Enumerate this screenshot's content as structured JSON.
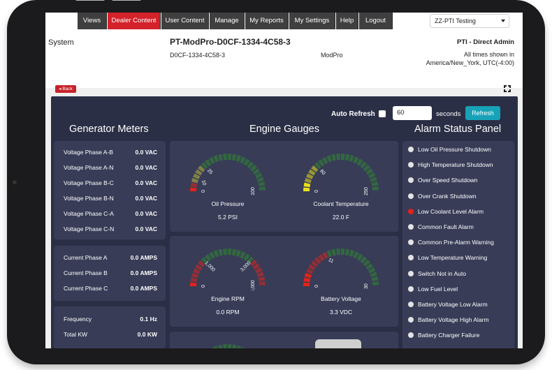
{
  "nav": {
    "tabs": [
      {
        "label": "Views",
        "active": false
      },
      {
        "label": "Dealer Content",
        "active": true
      },
      {
        "label": "User Content",
        "active": false
      },
      {
        "label": "Manage",
        "active": false
      },
      {
        "label": "My Reports",
        "active": false
      },
      {
        "label": "My Settings",
        "active": false
      },
      {
        "label": "Help",
        "active": false
      },
      {
        "label": "Logout",
        "active": false
      }
    ],
    "dealer_select": "ZZ-PTI Testing"
  },
  "header": {
    "section": "System",
    "device_title": "PT-ModPro-D0CF-1334-4C58-3",
    "device_id": "D0CF-1334-4C58-3",
    "device_model": "ModPro",
    "account": "PTI - Direct Admin",
    "timezone_line1": "All times shown in",
    "timezone_line2": "America/New_York, UTC(-4:00)"
  },
  "back_label": "Back",
  "controls": {
    "auto_refresh_label": "Auto Refresh",
    "auto_refresh_checked": false,
    "seconds_value": "60",
    "seconds_label": "seconds",
    "refresh_label": "Refresh"
  },
  "meters": {
    "title": "Generator Meters",
    "voltage": [
      {
        "label": "Voltage Phase A-B",
        "value": "0.0 VAC"
      },
      {
        "label": "Voltage Phase A-N",
        "value": "0.0 VAC"
      },
      {
        "label": "Voltage Phase B-C",
        "value": "0.0 VAC"
      },
      {
        "label": "Voltage Phase B-N",
        "value": "0.0 VAC"
      },
      {
        "label": "Voltage Phase C-A",
        "value": "0.0 VAC"
      },
      {
        "label": "Voltage Phase C-N",
        "value": "0.0 VAC"
      }
    ],
    "current": [
      {
        "label": "Current Phase A",
        "value": "0.0 AMPS"
      },
      {
        "label": "Current Phase B",
        "value": "0.0 AMPS"
      },
      {
        "label": "Current Phase C",
        "value": "0.0 AMPS"
      }
    ],
    "other": [
      {
        "label": "Frequency",
        "value": "0.1 Hz"
      },
      {
        "label": "Total KW",
        "value": "0.0 KW"
      }
    ]
  },
  "gauges": {
    "title": "Engine Gauges",
    "items": [
      {
        "name": "Oil Pressure",
        "value": "5.2 PSI",
        "min": "0",
        "max": "100",
        "ticks": [
          "10",
          "25"
        ],
        "reading": 0.052,
        "zones": [
          "#e2231a",
          "#b8b83a",
          "#2e8b2e"
        ],
        "zone_split": [
          0.1,
          0.25
        ]
      },
      {
        "name": "Coolant Temperature",
        "value": "22.0 F",
        "min": "0",
        "max": "250",
        "ticks": [
          "60"
        ],
        "reading": 0.088,
        "zones": [
          "#e8e01a",
          "#b8b83a",
          "#2e8b2e"
        ],
        "zone_split": [
          0.24,
          0.24
        ]
      },
      {
        "name": "Engine RPM",
        "value": "0.0 RPM",
        "min": "0",
        "max": "4,000",
        "ticks": [
          "1,000",
          "3,000"
        ],
        "reading": 0.0,
        "zones": [
          "#e2231a",
          "#2e8b2e",
          "#e2231a"
        ],
        "zone_split": [
          0.25,
          0.75
        ]
      },
      {
        "name": "Battery Voltage",
        "value": "3.3 VDC",
        "min": "0",
        "max": "30",
        "ticks": [
          "11"
        ],
        "reading": 0.11,
        "zones": [
          "#e2231a",
          "#2e8b2e",
          "#2e8b2e"
        ],
        "zone_split": [
          0.37,
          0.37
        ]
      },
      {
        "name": "",
        "value": "",
        "min": "",
        "max": "",
        "ticks": [
          "40",
          "50"
        ],
        "reading": 0.0,
        "zones": [
          "#2e8b2e",
          "#2e8b2e",
          "#2e8b2e"
        ],
        "zone_split": [
          0.4,
          0.5
        ]
      }
    ]
  },
  "alarms": {
    "title": "Alarm Status Panel",
    "items": [
      {
        "label": "Low Oil Pressure Shutdown",
        "active": false
      },
      {
        "label": "High Temperature Shutdown",
        "active": false
      },
      {
        "label": "Over Speed Shutdown",
        "active": false
      },
      {
        "label": "Over Crank Shutdown",
        "active": false
      },
      {
        "label": "Low Coolant Level Alarm",
        "active": true
      },
      {
        "label": "Common Fault Alarm",
        "active": false
      },
      {
        "label": "Common Pre-Alarm Warning",
        "active": false
      },
      {
        "label": "Low Temperature Warning",
        "active": false
      },
      {
        "label": "Switch Not in Auto",
        "active": false
      },
      {
        "label": "Low Fuel Level",
        "active": false
      },
      {
        "label": "Battery Voltage Low Alarm",
        "active": false
      },
      {
        "label": "Battery Voltage High Alarm",
        "active": false
      },
      {
        "label": "Battery Charger Failure",
        "active": false
      }
    ]
  },
  "colors": {
    "accent": "#d3222a",
    "dashboard_bg": "#2b2f46",
    "panel_bg": "#383c57",
    "refresh": "#17a2b8"
  }
}
